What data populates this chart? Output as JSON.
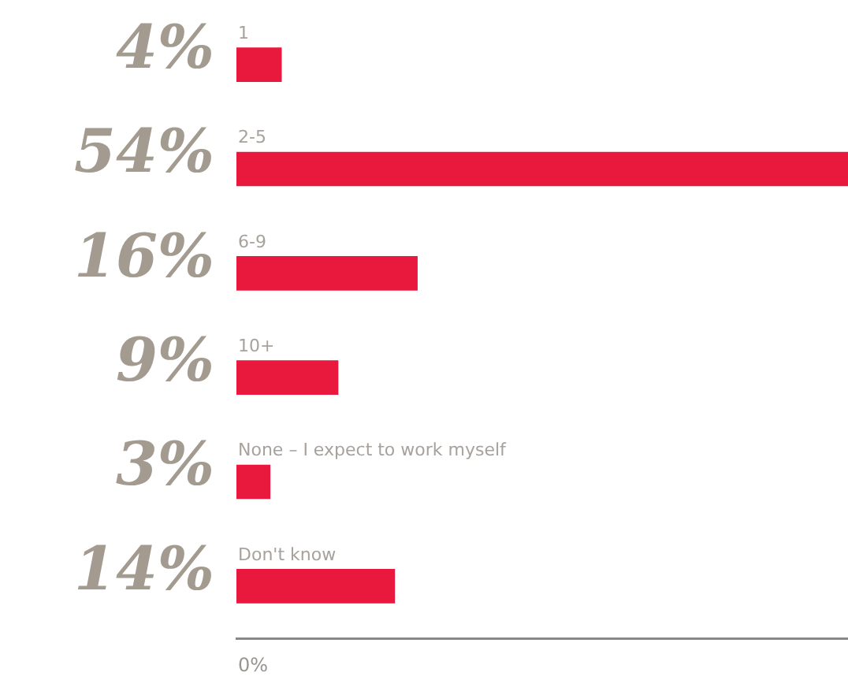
{
  "chart_data": {
    "type": "bar",
    "orientation": "horizontal",
    "categories": [
      "1",
      "2-5",
      "6-9",
      "10+",
      "None – I expect to work myself",
      "Don't know"
    ],
    "values": [
      4,
      54,
      16,
      9,
      3,
      14
    ],
    "value_labels": [
      "4%",
      "54%",
      "16%",
      "9%",
      "3%",
      "14%"
    ],
    "color": "#e8193c",
    "annotations": [
      "0%"
    ],
    "grid": false,
    "legend": false
  }
}
